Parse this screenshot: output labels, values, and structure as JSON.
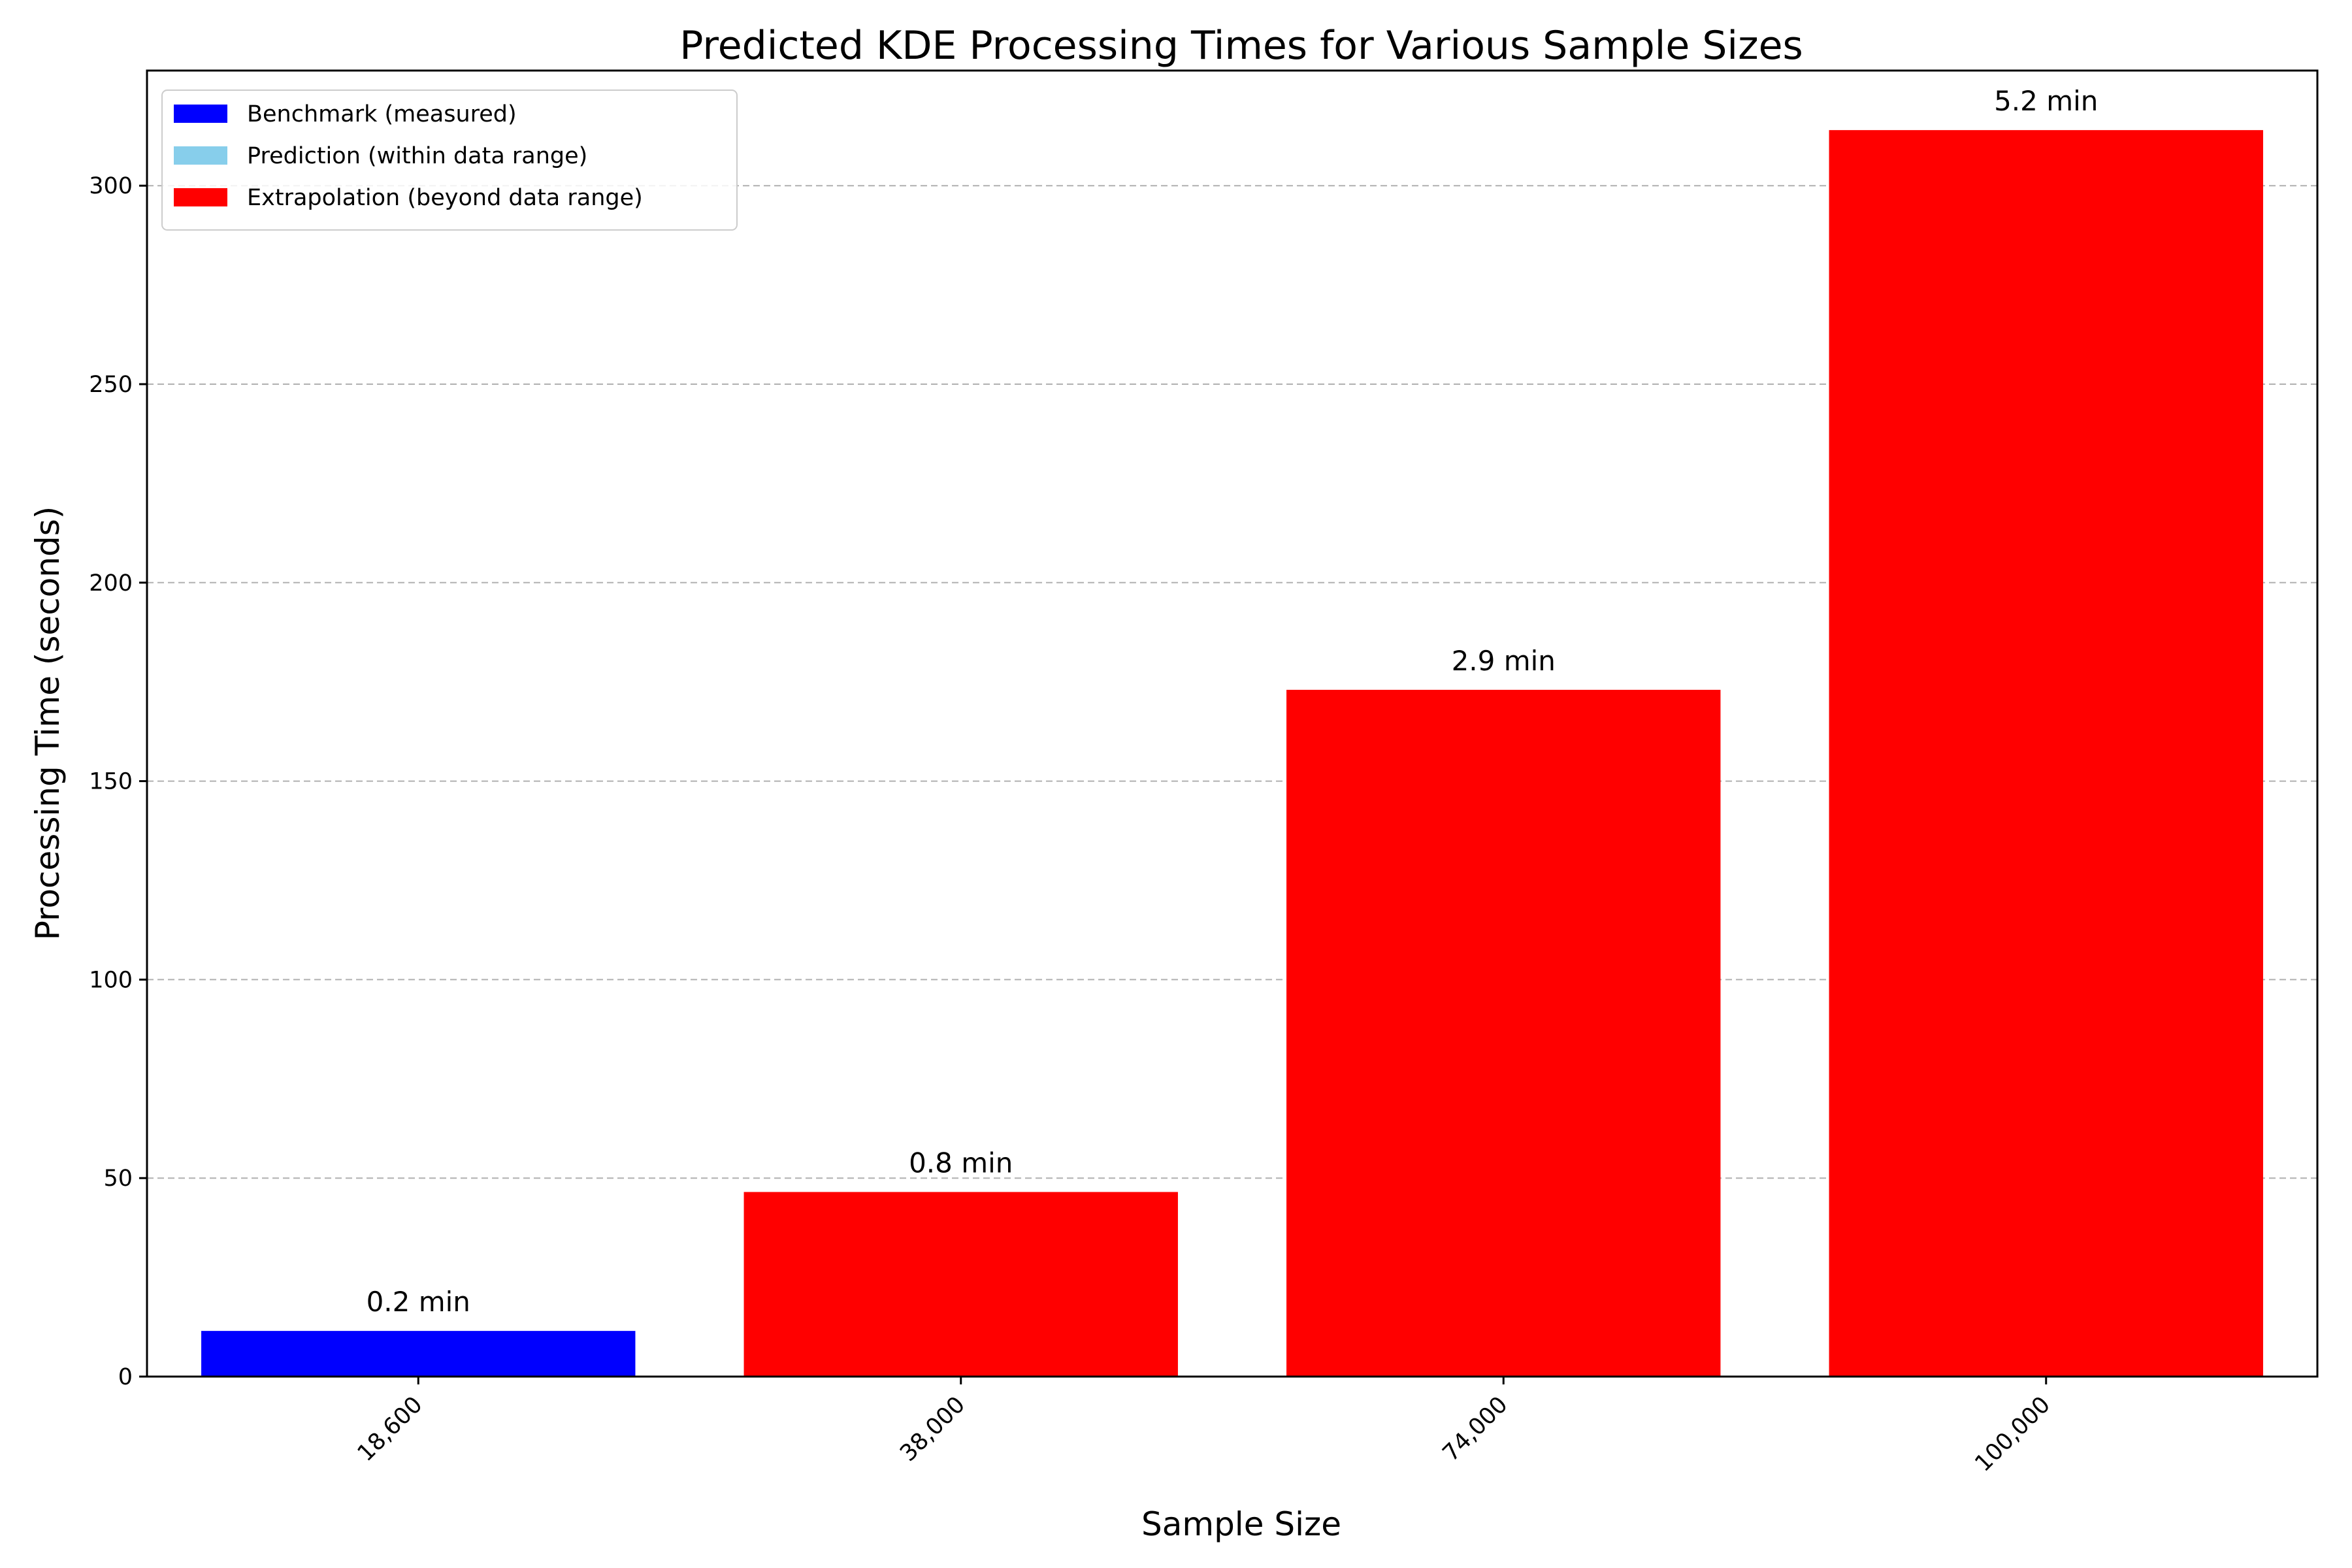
{
  "chart_data": {
    "type": "bar",
    "title": "Predicted KDE Processing Times for Various Sample Sizes",
    "xlabel": "Sample Size",
    "ylabel": "Processing Time (seconds)",
    "categories": [
      "18,600",
      "38,000",
      "74,000",
      "100,000"
    ],
    "values": [
      11.5,
      46.5,
      173,
      314
    ],
    "bar_labels": [
      "0.2 min",
      "0.8 min",
      "2.9 min",
      "5.2 min"
    ],
    "bar_series": [
      0,
      2,
      2,
      2
    ],
    "ylim": [
      0,
      329
    ],
    "yticks": [
      0,
      50,
      100,
      150,
      200,
      250,
      300
    ],
    "grid": "y-dashed",
    "legend_position": "top-left",
    "series": [
      {
        "name": "Benchmark (measured)",
        "color": "#0000ff"
      },
      {
        "name": "Prediction (within data range)",
        "color": "#87ceeb"
      },
      {
        "name": "Extrapolation (beyond data range)",
        "color": "#ff0000"
      }
    ]
  }
}
